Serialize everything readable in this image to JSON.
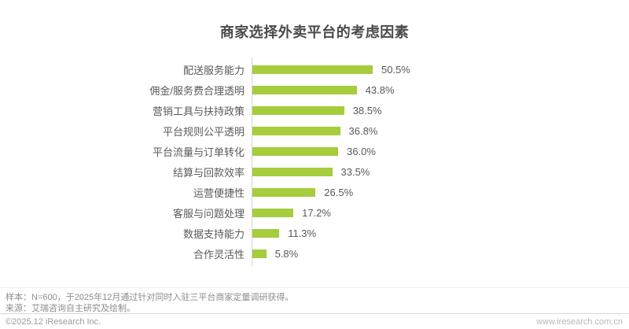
{
  "title": "商家选择外卖平台的考虑因素",
  "chart_data": {
    "type": "bar",
    "orientation": "horizontal",
    "title": "商家选择外卖平台的考虑因素",
    "categories": [
      "配送服务能力",
      "佣金/服务费合理透明",
      "营销工具与扶持政策",
      "平台规则公平透明",
      "平台流量与订单转化",
      "结算与回款效率",
      "运营便捷性",
      "客服与问题处理",
      "数据支持能力",
      "合作灵活性"
    ],
    "values": [
      50.5,
      43.8,
      38.5,
      36.8,
      36.0,
      33.5,
      26.5,
      17.2,
      11.3,
      5.8
    ],
    "value_labels": [
      "50.5%",
      "43.8%",
      "38.5%",
      "36.8%",
      "36.0%",
      "33.5%",
      "26.5%",
      "17.2%",
      "11.3%",
      "5.8%"
    ],
    "unit": "%",
    "xlim": [
      0,
      55
    ],
    "grid": false,
    "legend": false,
    "bar_color": "#a5cd3c",
    "axis_line_color": "#d4d4d4",
    "label_color": "#595959"
  },
  "footer": {
    "note_sample": "样本：N=600，于2025年12月通过针对同时入驻三平台商家定量调研获得。",
    "note_source": "来源：艾瑞咨询自主研究及绘制。",
    "copyright": "©2025.12 iResearch Inc.",
    "website": "www.iresearch.com.cn"
  }
}
